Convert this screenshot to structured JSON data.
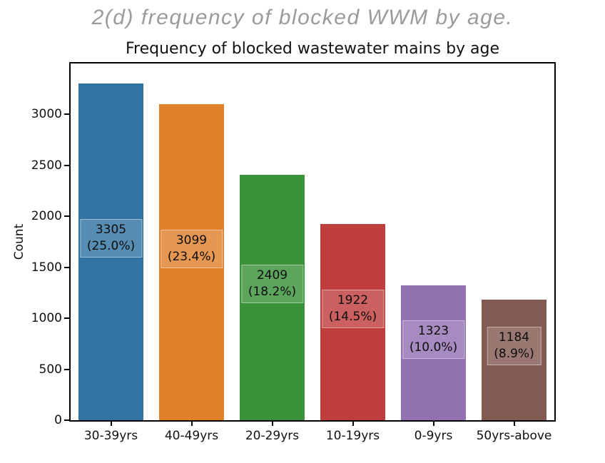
{
  "figure_caption": "2(d) frequency of blocked WWM by age.",
  "chart_data": {
    "type": "bar",
    "title": "Frequency of blocked wastewater mains by age",
    "xlabel": "",
    "ylabel": "Count",
    "ylim": [
      0,
      3500
    ],
    "y_ticks": [
      0,
      500,
      1000,
      1500,
      2000,
      2500,
      3000
    ],
    "grid": false,
    "legend": "none",
    "categories": [
      "30-39yrs",
      "40-49yrs",
      "20-29yrs",
      "10-19yrs",
      "0-9yrs",
      "50yrs-above"
    ],
    "values": [
      3305,
      3099,
      2409,
      1922,
      1323,
      1184
    ],
    "percent_labels": [
      "25.0%",
      "23.4%",
      "18.2%",
      "14.5%",
      "10.0%",
      "8.9%"
    ],
    "bar_colors": [
      "#3274a1",
      "#e1812c",
      "#3a923a",
      "#c03d3e",
      "#9372b2",
      "#845b53"
    ],
    "annotation_style": {
      "box_fill": "rgba(255,255,255,0.18)",
      "text_color": "#0d0d0d"
    },
    "spine_color": "#000000"
  }
}
